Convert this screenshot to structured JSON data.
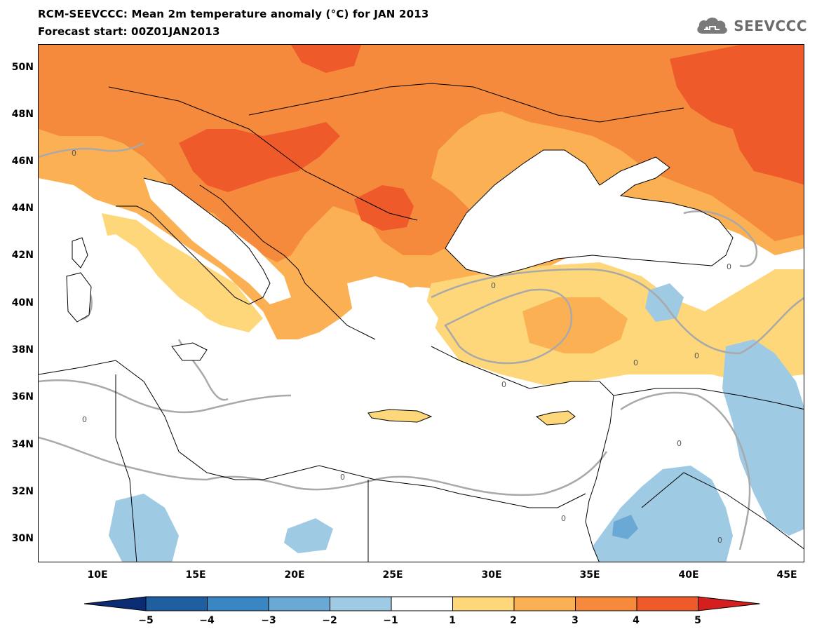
{
  "header": {
    "title": "RCM-SEEVCCC: Mean 2m temperature anomaly (°C) for JAN 2013",
    "subtitle": "Forecast start: 00Z01JAN2013",
    "logo_text": "SEEVCCC"
  },
  "map": {
    "lat_labels": [
      "50N",
      "48N",
      "46N",
      "44N",
      "42N",
      "40N",
      "38N",
      "36N",
      "34N",
      "32N",
      "30N"
    ],
    "lon_labels": [
      "10E",
      "15E",
      "20E",
      "25E",
      "30E",
      "35E",
      "40E",
      "45E"
    ],
    "contour_label": "0",
    "region_extent": {
      "lon_min": 7,
      "lon_max": 45.8,
      "lat_min": 29,
      "lat_max": 51
    }
  },
  "colorbar": {
    "tick_labels": [
      "−5",
      "−4",
      "−3",
      "−2",
      "−1",
      "1",
      "2",
      "3",
      "4",
      "5"
    ],
    "bins": [
      {
        "range": "<-5",
        "color": "#0b2c73"
      },
      {
        "range": "-5..-4",
        "color": "#1f5fa0"
      },
      {
        "range": "-4..-3",
        "color": "#3a86c2"
      },
      {
        "range": "-3..-2",
        "color": "#6aa9d6"
      },
      {
        "range": "-2..-1",
        "color": "#9fcae3"
      },
      {
        "range": "-1..1",
        "color": "#ffffff"
      },
      {
        "range": "1..2",
        "color": "#fdd77a"
      },
      {
        "range": "2..3",
        "color": "#fbb054"
      },
      {
        "range": "3..4",
        "color": "#f58a3c"
      },
      {
        "range": "4..5",
        "color": "#ee5a2a"
      },
      {
        "range": ">5",
        "color": "#d51f1f"
      }
    ]
  }
}
